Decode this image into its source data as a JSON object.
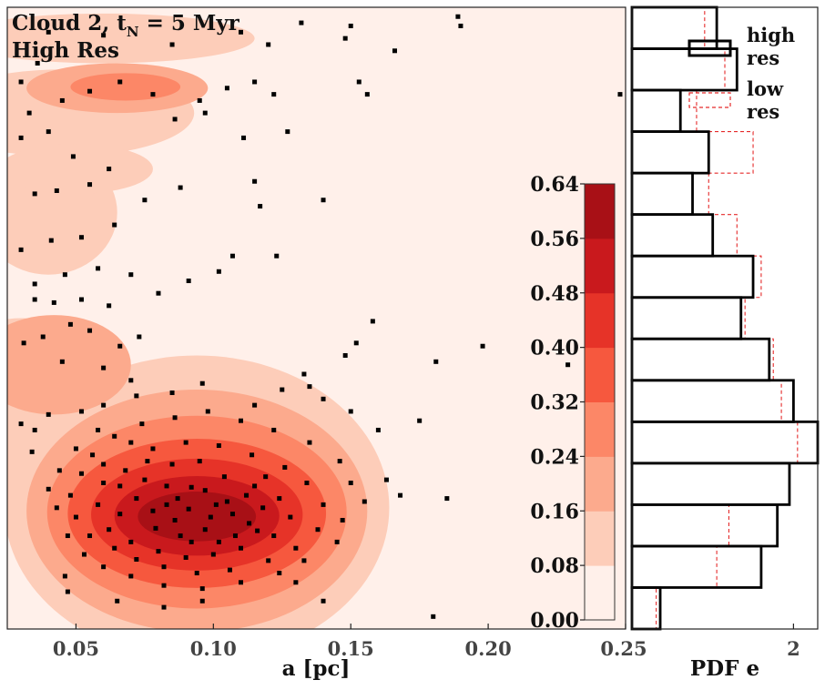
{
  "chart_data": [
    {
      "type": "heatmap",
      "subtype": "filled-contour-with-scatter",
      "title_line1": "Cloud 2, t",
      "title_sub": "N",
      "title_line1_rest": " = 5 Myr",
      "title_line2": "High Res",
      "xlabel": "a [pc]",
      "ylabel": "",
      "xlim": [
        0.025,
        0.25
      ],
      "ylim": [
        0,
        1
      ],
      "x_ticks": [
        0.05,
        0.1,
        0.15,
        0.2,
        0.25
      ],
      "x_tick_labels": [
        "0.05",
        "0.10",
        "0.15",
        "0.20",
        "0.25"
      ],
      "colorbar": {
        "levels": [
          0.0,
          0.08,
          0.16,
          0.24,
          0.32,
          0.4,
          0.48,
          0.56,
          0.64
        ],
        "labels": [
          "0.00",
          "0.08",
          "0.16",
          "0.24",
          "0.32",
          "0.40",
          "0.48",
          "0.56",
          "0.64"
        ],
        "colors": [
          "#fff0ea",
          "#fdcdb9",
          "#fcaa8d",
          "#fc8767",
          "#f6583e",
          "#e63328",
          "#c9191d",
          "#a81016",
          "#7d0a11"
        ]
      },
      "contour_blobs": [
        {
          "cx": 0.094,
          "cy": 0.195,
          "rx": 0.07,
          "ry": 0.245
        },
        {
          "cx": 0.094,
          "cy": 0.19,
          "rx": 0.062,
          "ry": 0.195
        },
        {
          "cx": 0.094,
          "cy": 0.188,
          "rx": 0.0545,
          "ry": 0.155
        },
        {
          "cx": 0.094,
          "cy": 0.186,
          "rx": 0.047,
          "ry": 0.12
        },
        {
          "cx": 0.094,
          "cy": 0.184,
          "rx": 0.0385,
          "ry": 0.09
        },
        {
          "cx": 0.094,
          "cy": 0.182,
          "rx": 0.03,
          "ry": 0.064
        },
        {
          "cx": 0.094,
          "cy": 0.181,
          "rx": 0.0215,
          "ry": 0.04
        },
        {
          "cx": 0.03,
          "cy": 0.36,
          "rx": 0.032,
          "ry": 0.14
        },
        {
          "cx": 0.042,
          "cy": 0.425,
          "rx": 0.028,
          "ry": 0.08
        },
        {
          "cx": 0.04,
          "cy": 0.67,
          "rx": 0.025,
          "ry": 0.1
        },
        {
          "cx": 0.045,
          "cy": 0.83,
          "rx": 0.048,
          "ry": 0.07
        },
        {
          "cx": 0.065,
          "cy": 0.87,
          "rx": 0.033,
          "ry": 0.04
        },
        {
          "cx": 0.068,
          "cy": 0.872,
          "rx": 0.02,
          "ry": 0.022
        },
        {
          "cx": 0.05,
          "cy": 0.74,
          "rx": 0.028,
          "ry": 0.04
        },
        {
          "cx": 0.06,
          "cy": 0.95,
          "rx": 0.055,
          "ry": 0.04
        }
      ],
      "blob_levels": [
        1,
        2,
        3,
        4,
        5,
        6,
        7,
        1,
        2,
        1,
        1,
        2,
        3,
        1,
        1
      ],
      "scatter_points": [
        [
          0.083,
          0.2
        ],
        [
          0.091,
          0.193
        ],
        [
          0.099,
          0.18
        ],
        [
          0.105,
          0.205
        ],
        [
          0.113,
          0.17
        ],
        [
          0.079,
          0.162
        ],
        [
          0.088,
          0.15
        ],
        [
          0.097,
          0.223
        ],
        [
          0.108,
          0.15
        ],
        [
          0.118,
          0.195
        ],
        [
          0.072,
          0.21
        ],
        [
          0.066,
          0.185
        ],
        [
          0.075,
          0.24
        ],
        [
          0.085,
          0.265
        ],
        [
          0.095,
          0.27
        ],
        [
          0.104,
          0.245
        ],
        [
          0.115,
          0.23
        ],
        [
          0.124,
          0.21
        ],
        [
          0.128,
          0.18
        ],
        [
          0.122,
          0.15
        ],
        [
          0.11,
          0.13
        ],
        [
          0.1,
          0.12
        ],
        [
          0.09,
          0.115
        ],
        [
          0.08,
          0.125
        ],
        [
          0.07,
          0.14
        ],
        [
          0.062,
          0.16
        ],
        [
          0.058,
          0.2
        ],
        [
          0.06,
          0.235
        ],
        [
          0.068,
          0.255
        ],
        [
          0.078,
          0.29
        ],
        [
          0.09,
          0.3
        ],
        [
          0.102,
          0.295
        ],
        [
          0.114,
          0.28
        ],
        [
          0.126,
          0.26
        ],
        [
          0.134,
          0.235
        ],
        [
          0.14,
          0.2
        ],
        [
          0.138,
          0.16
        ],
        [
          0.13,
          0.13
        ],
        [
          0.12,
          0.11
        ],
        [
          0.106,
          0.095
        ],
        [
          0.094,
          0.09
        ],
        [
          0.082,
          0.1
        ],
        [
          0.072,
          0.112
        ],
        [
          0.064,
          0.13
        ],
        [
          0.055,
          0.15
        ],
        [
          0.05,
          0.18
        ],
        [
          0.048,
          0.215
        ],
        [
          0.052,
          0.25
        ],
        [
          0.056,
          0.28
        ],
        [
          0.064,
          0.31
        ],
        [
          0.074,
          0.33
        ],
        [
          0.086,
          0.34
        ],
        [
          0.098,
          0.35
        ],
        [
          0.11,
          0.335
        ],
        [
          0.122,
          0.32
        ],
        [
          0.135,
          0.3
        ],
        [
          0.146,
          0.27
        ],
        [
          0.15,
          0.235
        ],
        [
          0.155,
          0.205
        ],
        [
          0.16,
          0.32
        ],
        [
          0.175,
          0.335
        ],
        [
          0.087,
          0.21
        ],
        [
          0.092,
          0.228
        ],
        [
          0.097,
          0.16
        ],
        [
          0.101,
          0.2
        ],
        [
          0.107,
          0.185
        ],
        [
          0.112,
          0.215
        ],
        [
          0.086,
          0.175
        ],
        [
          0.083,
          0.23
        ],
        [
          0.078,
          0.19
        ],
        [
          0.092,
          0.14
        ],
        [
          0.102,
          0.14
        ],
        [
          0.116,
          0.158
        ],
        [
          0.119,
          0.245
        ],
        [
          0.076,
          0.27
        ],
        [
          0.07,
          0.3
        ],
        [
          0.066,
          0.23
        ],
        [
          0.06,
          0.265
        ],
        [
          0.058,
          0.32
        ],
        [
          0.05,
          0.29
        ],
        [
          0.044,
          0.255
        ],
        [
          0.04,
          0.225
        ],
        [
          0.043,
          0.195
        ],
        [
          0.047,
          0.15
        ],
        [
          0.053,
          0.12
        ],
        [
          0.06,
          0.1
        ],
        [
          0.07,
          0.085
        ],
        [
          0.082,
          0.07
        ],
        [
          0.096,
          0.065
        ],
        [
          0.11,
          0.075
        ],
        [
          0.124,
          0.09
        ],
        [
          0.133,
          0.11
        ],
        [
          0.145,
          0.14
        ],
        [
          0.147,
          0.175
        ],
        [
          0.163,
          0.24
        ],
        [
          0.168,
          0.215
        ],
        [
          0.185,
          0.21
        ],
        [
          0.18,
          0.02
        ],
        [
          0.15,
          0.35
        ],
        [
          0.14,
          0.37
        ],
        [
          0.135,
          0.39
        ],
        [
          0.125,
          0.385
        ],
        [
          0.115,
          0.36
        ],
        [
          0.096,
          0.395
        ],
        [
          0.085,
          0.38
        ],
        [
          0.072,
          0.375
        ],
        [
          0.06,
          0.36
        ],
        [
          0.052,
          0.35
        ],
        [
          0.04,
          0.345
        ],
        [
          0.035,
          0.32
        ],
        [
          0.03,
          0.33
        ],
        [
          0.034,
          0.285
        ],
        [
          0.046,
          0.085
        ],
        [
          0.047,
          0.06
        ],
        [
          0.065,
          0.045
        ],
        [
          0.082,
          0.035
        ],
        [
          0.096,
          0.045
        ],
        [
          0.13,
          0.075
        ],
        [
          0.14,
          0.045
        ],
        [
          0.07,
          0.4
        ],
        [
          0.06,
          0.42
        ],
        [
          0.045,
          0.43
        ],
        [
          0.031,
          0.46
        ],
        [
          0.038,
          0.47
        ],
        [
          0.048,
          0.49
        ],
        [
          0.055,
          0.48
        ],
        [
          0.066,
          0.455
        ],
        [
          0.073,
          0.47
        ],
        [
          0.062,
          0.52
        ],
        [
          0.052,
          0.53
        ],
        [
          0.042,
          0.525
        ],
        [
          0.035,
          0.555
        ],
        [
          0.046,
          0.57
        ],
        [
          0.058,
          0.58
        ],
        [
          0.07,
          0.57
        ],
        [
          0.08,
          0.54
        ],
        [
          0.091,
          0.56
        ],
        [
          0.102,
          0.575
        ],
        [
          0.03,
          0.61
        ],
        [
          0.041,
          0.625
        ],
        [
          0.052,
          0.63
        ],
        [
          0.064,
          0.65
        ],
        [
          0.075,
          0.69
        ],
        [
          0.088,
          0.71
        ],
        [
          0.107,
          0.6
        ],
        [
          0.117,
          0.68
        ],
        [
          0.115,
          0.72
        ],
        [
          0.035,
          0.7
        ],
        [
          0.043,
          0.705
        ],
        [
          0.055,
          0.715
        ],
        [
          0.062,
          0.74
        ],
        [
          0.049,
          0.76
        ],
        [
          0.04,
          0.8
        ],
        [
          0.033,
          0.83
        ],
        [
          0.045,
          0.85
        ],
        [
          0.055,
          0.865
        ],
        [
          0.066,
          0.88
        ],
        [
          0.078,
          0.86
        ],
        [
          0.086,
          0.82
        ],
        [
          0.095,
          0.85
        ],
        [
          0.105,
          0.87
        ],
        [
          0.115,
          0.88
        ],
        [
          0.122,
          0.86
        ],
        [
          0.127,
          0.8
        ],
        [
          0.111,
          0.79
        ],
        [
          0.097,
          0.83
        ],
        [
          0.153,
          0.88
        ],
        [
          0.156,
          0.86
        ],
        [
          0.036,
          0.91
        ],
        [
          0.085,
          0.94
        ],
        [
          0.11,
          0.96
        ],
        [
          0.12,
          0.94
        ],
        [
          0.132,
          0.975
        ],
        [
          0.148,
          0.95
        ],
        [
          0.15,
          0.97
        ],
        [
          0.035,
          0.53
        ],
        [
          0.14,
          0.69
        ],
        [
          0.166,
          0.93
        ],
        [
          0.189,
          0.985
        ],
        [
          0.19,
          0.97
        ],
        [
          0.248,
          0.86
        ],
        [
          0.181,
          0.43
        ],
        [
          0.198,
          0.455
        ],
        [
          0.229,
          0.425
        ],
        [
          0.152,
          0.46
        ],
        [
          0.148,
          0.44
        ],
        [
          0.158,
          0.495
        ],
        [
          0.133,
          0.41
        ],
        [
          0.123,
          0.6
        ],
        [
          0.03,
          0.88
        ],
        [
          0.06,
          0.955
        ],
        [
          0.04,
          0.96
        ],
        [
          0.03,
          0.79
        ]
      ]
    },
    {
      "type": "bar",
      "orientation": "horizontal",
      "xlabel": "PDF e",
      "xlim": [
        0,
        2.3
      ],
      "x_ticks": [
        2
      ],
      "x_tick_labels": [
        "2"
      ],
      "bin_edges": [
        0.0,
        0.0667,
        0.1333,
        0.2,
        0.2667,
        0.3333,
        0.4,
        0.4667,
        0.5333,
        0.6,
        0.6667,
        0.7333,
        0.8,
        0.8667,
        0.9333,
        1.0
      ],
      "series": [
        {
          "name": "high res",
          "values": [
            0.35,
            1.6,
            1.8,
            1.95,
            2.3,
            2.0,
            1.7,
            1.35,
            1.5,
            1.0,
            0.75,
            0.95,
            0.6,
            1.3,
            1.05
          ]
        },
        {
          "name": "low res",
          "values": [
            0.3,
            1.05,
            1.2,
            1.95,
            2.05,
            1.85,
            1.75,
            1.4,
            1.6,
            1.3,
            0.95,
            1.5,
            0.8,
            1.15,
            0.9
          ]
        }
      ],
      "legend": {
        "position": "top-right",
        "high_line1": "high",
        "high_line2": "res",
        "low_line1": "low",
        "low_line2": "res"
      }
    }
  ]
}
